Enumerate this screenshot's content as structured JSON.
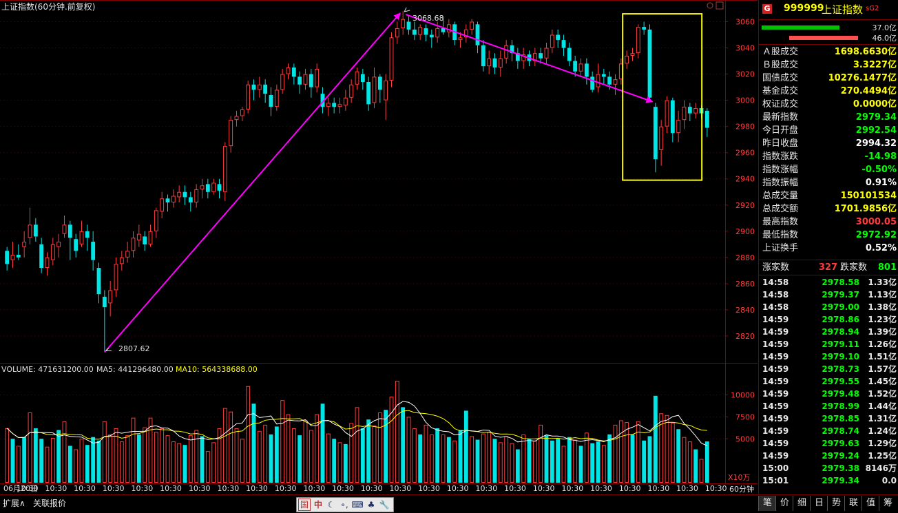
{
  "chart_header": {
    "title": "上证指数(60分钟.前复权)",
    "volume_label": "VOLUME: 471631200.00",
    "ma5_label": "MA5: 441296480.00",
    "ma10_label": "MA10: 564338688.00",
    "unit_label": "X10万",
    "period_label": "60分钟",
    "date_start": "06月20日",
    "time_tick": "10:30"
  },
  "chart_data": {
    "type": "candlestick",
    "title": "上证指数(60分钟.前复权)",
    "price_axis_ticks": [
      3060,
      3040,
      3020,
      3000,
      2980,
      2960,
      2940,
      2920,
      2900,
      2880,
      2860,
      2840,
      2820
    ],
    "ylim": [
      2800,
      3065
    ],
    "volume_axis_ticks": [
      10000,
      7500,
      5000
    ],
    "volume_ylim": [
      0,
      12000
    ],
    "annotations": [
      {
        "label": "3068.68",
        "value": 3068.68
      },
      {
        "label": "2807.62",
        "value": 2807.62
      }
    ],
    "colors": {
      "up": "#ff3c3c",
      "down": "#00e5e5",
      "ma5": "#ffffff",
      "ma10": "#ffff00",
      "arrow": "#ff00ff",
      "highlight_box": "#ffff00"
    },
    "candles": [
      [
        2885,
        2875,
        2888,
        2870
      ],
      [
        2878,
        2882,
        2892,
        2872
      ],
      [
        2882,
        2880,
        2890,
        2878
      ],
      [
        2888,
        2892,
        2900,
        2880
      ],
      [
        2895,
        2905,
        2918,
        2890
      ],
      [
        2905,
        2896,
        2910,
        2892
      ],
      [
        2890,
        2872,
        2895,
        2868
      ],
      [
        2872,
        2880,
        2884,
        2866
      ],
      [
        2878,
        2890,
        2895,
        2874
      ],
      [
        2888,
        2892,
        2898,
        2880
      ],
      [
        2898,
        2905,
        2912,
        2895
      ],
      [
        2905,
        2895,
        2908,
        2878
      ],
      [
        2894,
        2885,
        2898,
        2880
      ],
      [
        2890,
        2900,
        2908,
        2888
      ],
      [
        2900,
        2895,
        2905,
        2885
      ],
      [
        2892,
        2878,
        2900,
        2870
      ],
      [
        2872,
        2852,
        2876,
        2845
      ],
      [
        2850,
        2842,
        2855,
        2808
      ],
      [
        2845,
        2855,
        2862,
        2835
      ],
      [
        2855,
        2875,
        2880,
        2850
      ],
      [
        2875,
        2880,
        2885,
        2870
      ],
      [
        2880,
        2885,
        2892,
        2876
      ],
      [
        2885,
        2895,
        2900,
        2880
      ],
      [
        2893,
        2898,
        2905,
        2888
      ],
      [
        2896,
        2890,
        2900,
        2885
      ],
      [
        2890,
        2900,
        2905,
        2888
      ],
      [
        2900,
        2916,
        2918,
        2895
      ],
      [
        2915,
        2925,
        2930,
        2910
      ],
      [
        2925,
        2922,
        2928,
        2915
      ],
      [
        2922,
        2927,
        2932,
        2918
      ],
      [
        2926,
        2930,
        2935,
        2922
      ],
      [
        2930,
        2926,
        2935,
        2920
      ],
      [
        2926,
        2922,
        2930,
        2915
      ],
      [
        2922,
        2932,
        2936,
        2918
      ],
      [
        2932,
        2935,
        2940,
        2925
      ],
      [
        2936,
        2930,
        2940,
        2925
      ],
      [
        2930,
        2937,
        2940,
        2928
      ],
      [
        2936,
        2931,
        2940,
        2925
      ],
      [
        2930,
        2965,
        2968,
        2923
      ],
      [
        2965,
        2985,
        2988,
        2960
      ],
      [
        2985,
        2988,
        2992,
        2980
      ],
      [
        2988,
        2993,
        2995,
        2984
      ],
      [
        2993,
        3012,
        3015,
        2990
      ],
      [
        3012,
        3008,
        3016,
        3000
      ],
      [
        3008,
        3012,
        3018,
        3002
      ],
      [
        3012,
        3005,
        3016,
        2998
      ],
      [
        3004,
        2995,
        3010,
        2988
      ],
      [
        2995,
        3008,
        3012,
        2992
      ],
      [
        3008,
        3020,
        3024,
        3005
      ],
      [
        3020,
        3025,
        3028,
        3016
      ],
      [
        3025,
        3018,
        3028,
        3012
      ],
      [
        3018,
        3012,
        3022,
        3005
      ],
      [
        3012,
        3020,
        3024,
        3008
      ],
      [
        3020,
        3010,
        3024,
        3002
      ],
      [
        3010,
        3024,
        3028,
        3006
      ],
      [
        3005,
        2995,
        3010,
        2990
      ],
      [
        2995,
        2998,
        3002,
        2988
      ],
      [
        2998,
        2995,
        3002,
        2990
      ],
      [
        2995,
        2997,
        3002,
        2990
      ],
      [
        2996,
        3002,
        3008,
        2992
      ],
      [
        3002,
        3012,
        3016,
        2998
      ],
      [
        3012,
        3022,
        3025,
        3008
      ],
      [
        3020,
        3014,
        3024,
        3008
      ],
      [
        3014,
        2997,
        3018,
        2992
      ],
      [
        2998,
        3018,
        3025,
        2994
      ],
      [
        3018,
        3008,
        3020,
        2998
      ],
      [
        3000,
        3015,
        3020,
        2985
      ],
      [
        3015,
        3048,
        3052,
        3010
      ],
      [
        3048,
        3055,
        3060,
        3043
      ],
      [
        3055,
        3062,
        3068,
        3050
      ],
      [
        3060,
        3054,
        3064,
        3050
      ],
      [
        3054,
        3050,
        3060,
        3046
      ],
      [
        3050,
        3056,
        3058,
        3046
      ],
      [
        3055,
        3050,
        3058,
        3045
      ],
      [
        3050,
        3048,
        3054,
        3040
      ],
      [
        3048,
        3055,
        3060,
        3044
      ],
      [
        3055,
        3052,
        3064,
        3050
      ],
      [
        3052,
        3058,
        3062,
        3048
      ],
      [
        3058,
        3046,
        3060,
        3042
      ],
      [
        3046,
        3048,
        3052,
        3040
      ],
      [
        3048,
        3054,
        3058,
        3044
      ],
      [
        3054,
        3060,
        3062,
        3050
      ],
      [
        3058,
        3042,
        3060,
        3036
      ],
      [
        3042,
        3026,
        3046,
        3022
      ],
      [
        3026,
        3032,
        3038,
        3020
      ],
      [
        3032,
        3025,
        3036,
        3020
      ],
      [
        3025,
        3032,
        3038,
        3018
      ],
      [
        3032,
        3042,
        3046,
        3028
      ],
      [
        3042,
        3036,
        3046,
        3030
      ],
      [
        3036,
        3030,
        3040,
        3024
      ],
      [
        3030,
        3035,
        3040,
        3024
      ],
      [
        3035,
        3030,
        3038,
        3026
      ],
      [
        3030,
        3036,
        3040,
        3026
      ],
      [
        3036,
        3032,
        3040,
        3028
      ],
      [
        3032,
        3040,
        3044,
        3028
      ],
      [
        3040,
        3050,
        3054,
        3036
      ],
      [
        3050,
        3046,
        3054,
        3040
      ],
      [
        3046,
        3040,
        3050,
        3034
      ],
      [
        3040,
        3030,
        3044,
        3026
      ],
      [
        3030,
        3022,
        3034,
        3018
      ],
      [
        3022,
        3028,
        3032,
        3018
      ],
      [
        3028,
        3018,
        3032,
        3012
      ],
      [
        3018,
        3008,
        3022,
        3006
      ],
      [
        3010,
        3020,
        3028,
        3006
      ],
      [
        3020,
        3018,
        3024,
        3012
      ],
      [
        3018,
        3012,
        3022,
        3008
      ],
      [
        3012,
        3016,
        3020,
        3004
      ],
      [
        3016,
        3028,
        3032,
        3012
      ],
      [
        3028,
        3034,
        3038,
        3024
      ],
      [
        3034,
        3036,
        3040,
        3030
      ],
      [
        3036,
        3056,
        3058,
        3032
      ],
      [
        3056,
        3054,
        3060,
        3050
      ],
      [
        3054,
        3002,
        3058,
        3000
      ],
      [
        2995,
        2955,
        2998,
        2945
      ],
      [
        2962,
        2980,
        2985,
        2950
      ],
      [
        2980,
        3000,
        3003,
        2975
      ],
      [
        3000,
        2975,
        3002,
        2968
      ],
      [
        2975,
        2985,
        2992,
        2968
      ],
      [
        2985,
        2995,
        3000,
        2978
      ],
      [
        2995,
        2990,
        2998,
        2984
      ],
      [
        2990,
        2994,
        2998,
        2986
      ],
      [
        2994,
        2990,
        2996,
        2986
      ],
      [
        2992,
        2979,
        2994,
        2972
      ]
    ],
    "volumes": [
      [
        6200,
        1
      ],
      [
        5000,
        0
      ],
      [
        4200,
        1
      ],
      [
        5200,
        0
      ],
      [
        8000,
        1
      ],
      [
        6200,
        0
      ],
      [
        5000,
        0
      ],
      [
        4100,
        1
      ],
      [
        5100,
        1
      ],
      [
        6000,
        0
      ],
      [
        7000,
        1
      ],
      [
        4200,
        0
      ],
      [
        3800,
        1
      ],
      [
        5000,
        1
      ],
      [
        4300,
        0
      ],
      [
        5200,
        0
      ],
      [
        4800,
        0
      ],
      [
        7000,
        1
      ],
      [
        5500,
        1
      ],
      [
        6200,
        1
      ],
      [
        4700,
        1
      ],
      [
        5400,
        1
      ],
      [
        7400,
        1
      ],
      [
        5500,
        0
      ],
      [
        6300,
        1
      ],
      [
        7400,
        1
      ],
      [
        5800,
        1
      ],
      [
        6200,
        1
      ],
      [
        5400,
        1
      ],
      [
        4700,
        1
      ],
      [
        4500,
        1
      ],
      [
        4300,
        0
      ],
      [
        5400,
        1
      ],
      [
        6000,
        1
      ],
      [
        5300,
        0
      ],
      [
        3600,
        1
      ],
      [
        4600,
        1
      ],
      [
        6200,
        1
      ],
      [
        8500,
        1
      ],
      [
        8100,
        1
      ],
      [
        6200,
        1
      ],
      [
        5000,
        1
      ],
      [
        11000,
        1
      ],
      [
        9000,
        0
      ],
      [
        5900,
        1
      ],
      [
        6600,
        1
      ],
      [
        5500,
        0
      ],
      [
        6400,
        0
      ],
      [
        9400,
        1
      ],
      [
        7800,
        1
      ],
      [
        6200,
        1
      ],
      [
        5400,
        0
      ],
      [
        7100,
        1
      ],
      [
        6000,
        1
      ],
      [
        7800,
        1
      ],
      [
        9000,
        0
      ],
      [
        5600,
        1
      ],
      [
        5000,
        0
      ],
      [
        4600,
        1
      ],
      [
        4400,
        0
      ],
      [
        6800,
        1
      ],
      [
        8600,
        1
      ],
      [
        6200,
        0
      ],
      [
        7200,
        0
      ],
      [
        6500,
        1
      ],
      [
        8000,
        1
      ],
      [
        8300,
        0
      ],
      [
        9800,
        1
      ],
      [
        11600,
        1
      ],
      [
        8600,
        0
      ],
      [
        7500,
        1
      ],
      [
        6200,
        1
      ],
      [
        5500,
        0
      ],
      [
        6600,
        1
      ],
      [
        5500,
        1
      ],
      [
        6200,
        0
      ],
      [
        5500,
        1
      ],
      [
        5200,
        0
      ],
      [
        4800,
        1
      ],
      [
        6000,
        0
      ],
      [
        8200,
        0
      ],
      [
        5300,
        1
      ],
      [
        4900,
        0
      ],
      [
        5600,
        1
      ],
      [
        5800,
        1
      ],
      [
        5000,
        0
      ],
      [
        4600,
        1
      ],
      [
        5300,
        1
      ],
      [
        4500,
        1
      ],
      [
        3800,
        0
      ],
      [
        5500,
        1
      ],
      [
        5000,
        0
      ],
      [
        4800,
        1
      ],
      [
        6600,
        1
      ],
      [
        5400,
        0
      ],
      [
        4800,
        0
      ],
      [
        5000,
        0
      ],
      [
        4200,
        1
      ],
      [
        5200,
        0
      ],
      [
        4900,
        1
      ],
      [
        4200,
        0
      ],
      [
        5700,
        1
      ],
      [
        4500,
        0
      ],
      [
        4700,
        0
      ],
      [
        4300,
        1
      ],
      [
        5500,
        0
      ],
      [
        6600,
        1
      ],
      [
        7100,
        1
      ],
      [
        6900,
        1
      ],
      [
        5500,
        0
      ],
      [
        7000,
        1
      ],
      [
        4800,
        0
      ],
      [
        5300,
        0
      ],
      [
        9900,
        0
      ],
      [
        7900,
        1
      ],
      [
        7700,
        1
      ],
      [
        6800,
        1
      ],
      [
        6100,
        0
      ],
      [
        5200,
        1
      ],
      [
        4700,
        1
      ],
      [
        3800,
        0
      ],
      [
        2700,
        1
      ],
      [
        4700,
        0
      ]
    ]
  },
  "panel": {
    "icon_g": "G",
    "code": "999999",
    "name": "上证指数",
    "badge": "sG2",
    "up_amount": "37.0亿",
    "down_amount": "46.0亿",
    "stats": [
      {
        "label": "Ａ股成交",
        "value": "1698.6630亿",
        "color": "#ffff00"
      },
      {
        "label": "Ｂ股成交",
        "value": "3.3227亿",
        "color": "#ffff00"
      },
      {
        "label": "国债成交",
        "value": "10276.1477亿",
        "color": "#ffff00"
      },
      {
        "label": "基金成交",
        "value": "270.4494亿",
        "color": "#ffff00"
      },
      {
        "label": "权证成交",
        "value": "0.0000亿",
        "color": "#ffff00"
      },
      {
        "label": "最新指数",
        "value": "2979.34",
        "color": "#00ff00"
      },
      {
        "label": "今日开盘",
        "value": "2992.54",
        "color": "#00ff00"
      },
      {
        "label": "昨日收盘",
        "value": "2994.32",
        "color": "#ffffff"
      },
      {
        "label": "指数涨跌",
        "value": "-14.98",
        "color": "#00ff00"
      },
      {
        "label": "指数涨幅",
        "value": "-0.50%",
        "color": "#00ff00"
      },
      {
        "label": "指数振幅",
        "value": "0.91%",
        "color": "#ffffff"
      },
      {
        "label": "总成交量",
        "value": "150101534",
        "color": "#ffff00"
      },
      {
        "label": "总成交额",
        "value": "1701.9856亿",
        "color": "#ffff00"
      },
      {
        "label": "最高指数",
        "value": "3000.05",
        "color": "#ff3c3c"
      },
      {
        "label": "最低指数",
        "value": "2972.92",
        "color": "#00ff00"
      },
      {
        "label": "上证换手",
        "value": "0.52%",
        "color": "#ffffff"
      }
    ],
    "up_count_label": "涨家数",
    "up_count": "327",
    "down_count_label": "跌家数",
    "down_count": "801",
    "ticks": [
      {
        "time": "14:58",
        "price": "2978.58",
        "vol": "1.33亿"
      },
      {
        "time": "14:58",
        "price": "2979.37",
        "vol": "1.13亿"
      },
      {
        "time": "14:58",
        "price": "2979.00",
        "vol": "1.38亿"
      },
      {
        "time": "14:59",
        "price": "2978.86",
        "vol": "1.23亿"
      },
      {
        "time": "14:59",
        "price": "2978.94",
        "vol": "1.39亿"
      },
      {
        "time": "14:59",
        "price": "2979.11",
        "vol": "1.26亿"
      },
      {
        "time": "14:59",
        "price": "2979.10",
        "vol": "1.51亿"
      },
      {
        "time": "14:59",
        "price": "2978.73",
        "vol": "1.57亿"
      },
      {
        "time": "14:59",
        "price": "2979.55",
        "vol": "1.45亿"
      },
      {
        "time": "14:59",
        "price": "2979.48",
        "vol": "1.52亿"
      },
      {
        "time": "14:59",
        "price": "2978.99",
        "vol": "1.44亿"
      },
      {
        "time": "14:59",
        "price": "2978.85",
        "vol": "1.31亿"
      },
      {
        "time": "14:59",
        "price": "2978.74",
        "vol": "1.24亿"
      },
      {
        "time": "14:59",
        "price": "2979.63",
        "vol": "1.29亿"
      },
      {
        "time": "14:59",
        "price": "2979.24",
        "vol": "1.25亿"
      },
      {
        "time": "15:00",
        "price": "2979.38",
        "vol": "8146万"
      },
      {
        "time": "15:01",
        "price": "2979.34",
        "vol": "0.0"
      }
    ]
  },
  "bottom_bar": {
    "tab_expand": "扩展∧",
    "tab_related": "关联报价",
    "tool_icons": [
      "国",
      "中",
      "☾",
      "∘,",
      "⌨",
      "♣",
      "🔧"
    ],
    "right_tabs": [
      "笔",
      "价",
      "细",
      "日",
      "势",
      "联",
      "值",
      "筹"
    ]
  }
}
